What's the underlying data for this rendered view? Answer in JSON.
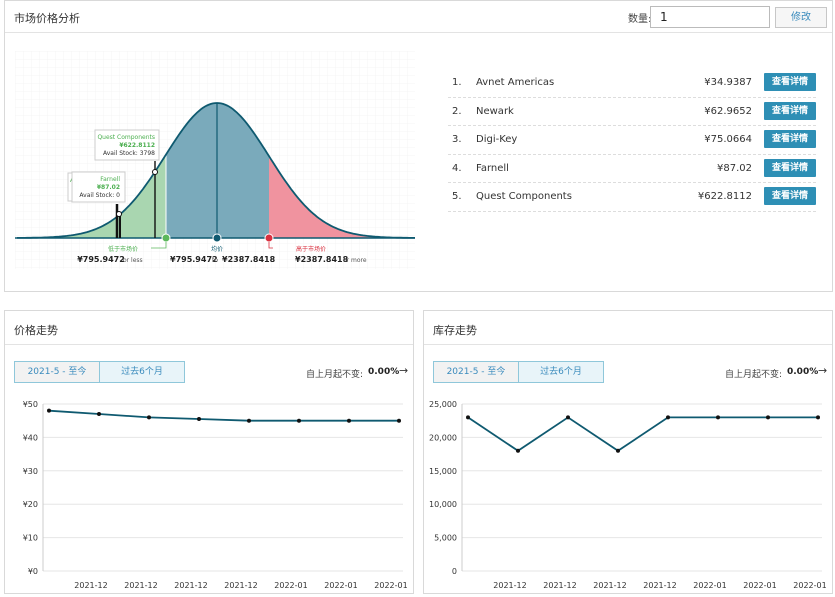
{
  "market": {
    "title": "市场价格分析",
    "qty_label": "数量:",
    "qty_value": "1",
    "edit_label": "修改"
  },
  "distribution": {
    "callout_quest_name": "Quest Components",
    "callout_quest_price": "¥622.8112",
    "callout_quest_stock": "Avail Stock: 3798",
    "callout_farnell_name": "Farnell",
    "callout_farnell_price": "¥87.02",
    "callout_farnell_stock": "Avail Stock: 0",
    "callout_hidden": "A",
    "low_label": "低于市场价",
    "low_value": "¥795.9472",
    "low_suffix": "or less",
    "mid_label": "均价",
    "mid_value_from": "¥795.9472",
    "mid_to": "to",
    "mid_value_to": "¥2387.8418",
    "high_label": "高于市场价",
    "high_value": "¥2387.8418",
    "high_suffix": "or more",
    "colors": {
      "low": "#a9d6b0",
      "mid": "#7aaabb",
      "high": "#f0939f",
      "curve": "#0f5a70"
    }
  },
  "suppliers": [
    {
      "rank": "1.",
      "name": "Avnet Americas",
      "price": "¥34.9387",
      "button": "查看详情"
    },
    {
      "rank": "2.",
      "name": "Newark",
      "price": "¥62.9652",
      "button": "查看详情"
    },
    {
      "rank": "3.",
      "name": "Digi-Key",
      "price": "¥75.0664",
      "button": "查看详情"
    },
    {
      "rank": "4.",
      "name": "Farnell",
      "price": "¥87.02",
      "button": "查看详情"
    },
    {
      "rank": "5.",
      "name": "Quest Components",
      "price": "¥622.8112",
      "button": "查看详情"
    }
  ],
  "price_trend": {
    "title": "价格走势",
    "tab_range": "2021-5 - 至今",
    "tab_six_months": "过去6个月",
    "change_label": "自上月起不变:",
    "change_value": "0.00%"
  },
  "stock_trend": {
    "title": "库存走势",
    "tab_range": "2021-5 - 至今",
    "tab_six_months": "过去6个月",
    "change_label": "自上月起不变:",
    "change_value": "0.00%"
  },
  "chart_data": [
    {
      "type": "line",
      "x": [
        "",
        "2021-12",
        "2021-12",
        "2021-12",
        "2021-12",
        "2022-01",
        "2022-01",
        "2022-01"
      ],
      "values": [
        48,
        47,
        46,
        45.5,
        45,
        45,
        45,
        45
      ],
      "ylim": [
        0,
        50
      ],
      "yticks": [
        0,
        10,
        20,
        30,
        40,
        50
      ],
      "ytick_labels": [
        "¥0",
        "¥10",
        "¥20",
        "¥30",
        "¥40",
        "¥50"
      ],
      "grid": true,
      "color": "#0f5a70"
    },
    {
      "type": "line",
      "x": [
        "",
        "2021-12",
        "2021-12",
        "2021-12",
        "2021-12",
        "2022-01",
        "2022-01",
        "2022-01"
      ],
      "values": [
        23000,
        18000,
        23000,
        18000,
        23000,
        23000,
        23000,
        23000
      ],
      "ylim": [
        0,
        25000
      ],
      "yticks": [
        0,
        5000,
        10000,
        15000,
        20000,
        25000
      ],
      "ytick_labels": [
        "0",
        "5,000",
        "10,000",
        "15,000",
        "20,000",
        "25,000"
      ],
      "grid": true,
      "color": "#0f5a70"
    }
  ]
}
